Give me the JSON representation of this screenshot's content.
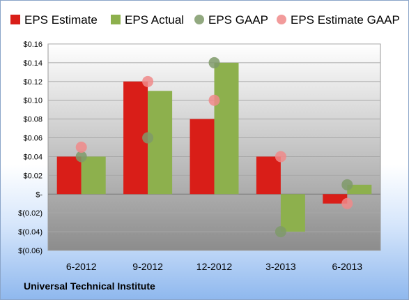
{
  "chart_data": {
    "type": "bar",
    "categories": [
      "6-2012",
      "9-2012",
      "12-2012",
      "3-2013",
      "6-2013"
    ],
    "series": [
      {
        "name": "EPS Estimate",
        "kind": "bar",
        "color": "#d91e18",
        "values": [
          0.04,
          0.12,
          0.08,
          0.04,
          -0.01
        ]
      },
      {
        "name": "EPS Actual",
        "kind": "bar",
        "color": "#8db04d",
        "values": [
          0.04,
          0.11,
          0.14,
          -0.04,
          0.01
        ]
      },
      {
        "name": "EPS GAAP",
        "kind": "marker",
        "color": "#7f9a6a",
        "values": [
          0.04,
          0.06,
          0.14,
          -0.04,
          0.01
        ]
      },
      {
        "name": "EPS Estimate GAAP",
        "kind": "marker",
        "color": "#f08a8a",
        "values": [
          0.05,
          0.12,
          0.1,
          0.04,
          -0.01
        ]
      }
    ],
    "yticks": [
      {
        "value": 0.16,
        "label": "$0.16"
      },
      {
        "value": 0.14,
        "label": "$0.14"
      },
      {
        "value": 0.12,
        "label": "$0.12"
      },
      {
        "value": 0.1,
        "label": "$0.10"
      },
      {
        "value": 0.08,
        "label": "$0.08"
      },
      {
        "value": 0.06,
        "label": "$0.06"
      },
      {
        "value": 0.04,
        "label": "$0.04"
      },
      {
        "value": 0.02,
        "label": "$0.02"
      },
      {
        "value": 0,
        "label": "$-"
      },
      {
        "value": -0.02,
        "label": "$(0.02)"
      },
      {
        "value": -0.04,
        "label": "$(0.04)"
      },
      {
        "value": -0.06,
        "label": "$(0.06)"
      }
    ],
    "ylim": [
      -0.06,
      0.16
    ],
    "grid": true,
    "legend_position": "top",
    "footer": "Universal Technical Institute"
  }
}
